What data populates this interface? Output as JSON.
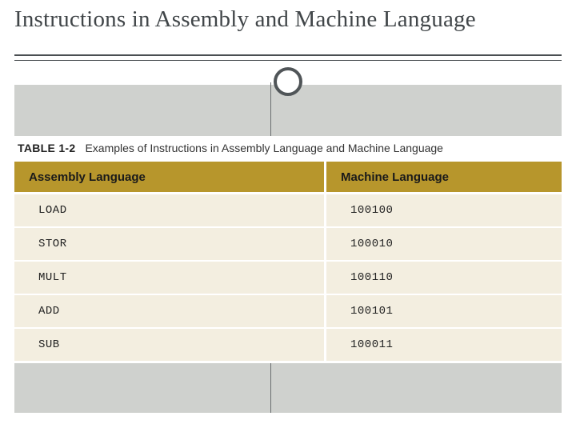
{
  "title": "Instructions in Assembly and Machine Language",
  "caption": {
    "label": "TABLE 1-2",
    "text": "Examples of Instructions in Assembly Language and Machine Language"
  },
  "table": {
    "type": "table",
    "header_bg": "#b7962c",
    "row_bg": "#f3eee0",
    "columns": [
      {
        "label": "Assembly Language"
      },
      {
        "label": "Machine Language"
      }
    ],
    "rows": [
      {
        "assembly": "LOAD",
        "machine": "100100"
      },
      {
        "assembly": "STOR",
        "machine": "100010"
      },
      {
        "assembly": "MULT",
        "machine": "100110"
      },
      {
        "assembly": "ADD",
        "machine": "100101"
      },
      {
        "assembly": "SUB",
        "machine": "100011"
      }
    ]
  },
  "colors": {
    "title_text": "#414649",
    "underline": "#4a4f52",
    "circle_border": "#505558",
    "gray_band": "#cfd1ce",
    "divider": "#6a6e70",
    "white": "#ffffff"
  },
  "layout": {
    "slide_w": 720,
    "slide_h": 540
  }
}
